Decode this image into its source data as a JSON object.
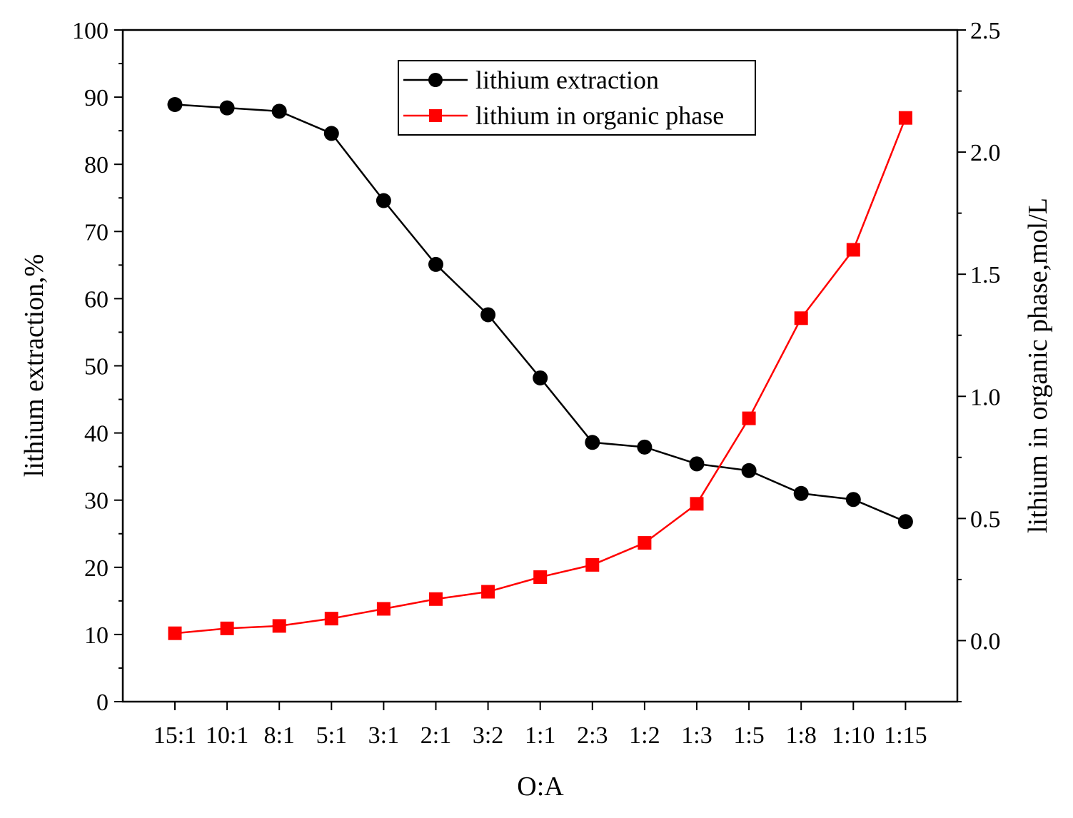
{
  "chart_data": {
    "type": "line",
    "title": "",
    "xlabel": "O:A",
    "ylabel": "lithium extraction,%",
    "y2label": "lithium in organic phase,mol/L",
    "ylim": [
      0,
      100
    ],
    "y2lim": [
      -0.25,
      2.5
    ],
    "yticks": [
      "0",
      "10",
      "20",
      "30",
      "40",
      "50",
      "60",
      "70",
      "80",
      "90",
      "100"
    ],
    "y2ticks": [
      "0.0",
      "0.5",
      "1.0",
      "1.5",
      "2.0",
      "2.5"
    ],
    "grid": false,
    "legend_position": "top-center",
    "categories": [
      "15:1",
      "10:1",
      "8:1",
      "5:1",
      "3:1",
      "2:1",
      "3:2",
      "1:1",
      "2:3",
      "1:2",
      "1:3",
      "1:5",
      "1:8",
      "1:10",
      "1:15"
    ],
    "series": [
      {
        "name": "lithium extraction",
        "axis": "left",
        "color": "#000000",
        "marker": "circle",
        "values": [
          88.9,
          88.4,
          87.9,
          84.6,
          74.6,
          65.1,
          57.6,
          48.2,
          38.6,
          37.9,
          35.4,
          34.4,
          31.0,
          30.1,
          26.8
        ]
      },
      {
        "name": "lithium in organic phase",
        "axis": "right",
        "color": "#ff0000",
        "marker": "square",
        "values": [
          0.03,
          0.05,
          0.06,
          0.09,
          0.13,
          0.17,
          0.2,
          0.26,
          0.31,
          0.4,
          0.56,
          0.91,
          1.32,
          1.6,
          2.14
        ]
      }
    ]
  }
}
